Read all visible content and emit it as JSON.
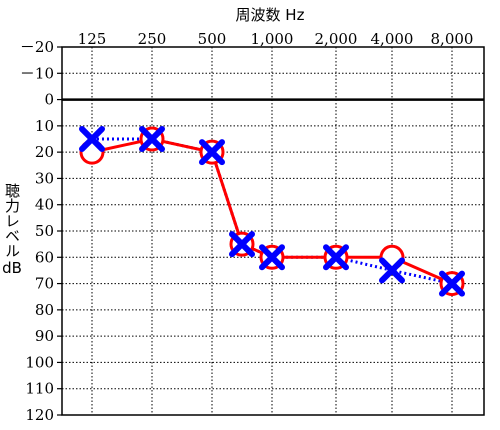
{
  "chart_data": {
    "type": "line",
    "xlabel": "周波数 Hz",
    "ylabel": "聴力レベル",
    "yunit": "dB",
    "categories": [
      "125",
      "250",
      "500",
      "1,000",
      "2,000",
      "4,000",
      "8,000"
    ],
    "yticks": [
      "－20",
      "－10",
      "0",
      "10",
      "20",
      "30",
      "40",
      "50",
      "60",
      "70",
      "80",
      "90",
      "100",
      "110",
      "120"
    ],
    "ylim": [
      -20,
      120
    ],
    "y_inverted": true,
    "grid": true,
    "reference_line": 0,
    "series": [
      {
        "marker": "circle",
        "line": "solid",
        "color": "#ff0000",
        "values": [
          20,
          15,
          20,
          55,
          60,
          60,
          60,
          70
        ],
        "x": [
          "125",
          "250",
          "500",
          "750",
          "1,000",
          "2,000",
          "4,000",
          "8,000"
        ]
      },
      {
        "marker": "cross",
        "line": "dotted",
        "color": "#0000ff",
        "values": [
          15,
          15,
          20,
          55,
          60,
          60,
          65,
          70
        ],
        "x": [
          "125",
          "250",
          "500",
          "750",
          "1,000",
          "2,000",
          "4,000",
          "8,000"
        ]
      }
    ]
  }
}
